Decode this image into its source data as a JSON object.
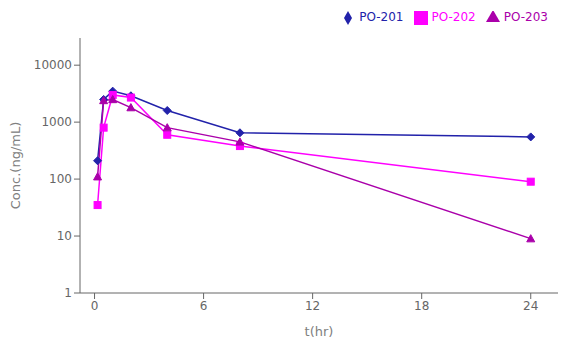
{
  "chart_data": {
    "type": "line",
    "x": [
      0.167,
      0.5,
      1,
      2,
      4,
      8,
      24
    ],
    "series": [
      {
        "name": "PO-201",
        "color": "#2222aa",
        "marker": "diamond",
        "values": [
          210,
          2500,
          3500,
          2900,
          1600,
          650,
          550
        ]
      },
      {
        "name": "PO-202",
        "color": "#ff00ff",
        "marker": "square",
        "values": [
          35,
          800,
          3000,
          2700,
          600,
          380,
          90
        ]
      },
      {
        "name": "PO-203",
        "color": "#aa00aa",
        "marker": "triangle",
        "values": [
          110,
          2400,
          2500,
          1800,
          800,
          450,
          9
        ]
      }
    ],
    "xlabel": "t(hr)",
    "ylabel": "Conc.(ng/mL)",
    "xlim": [
      -0.8,
      25.5
    ],
    "ylim": [
      1,
      30000
    ],
    "xticks": [
      0,
      6,
      12,
      18,
      24
    ],
    "yticks": [
      1,
      10,
      100,
      1000,
      10000
    ],
    "log": "y",
    "grid": false,
    "legend": "upper right"
  }
}
